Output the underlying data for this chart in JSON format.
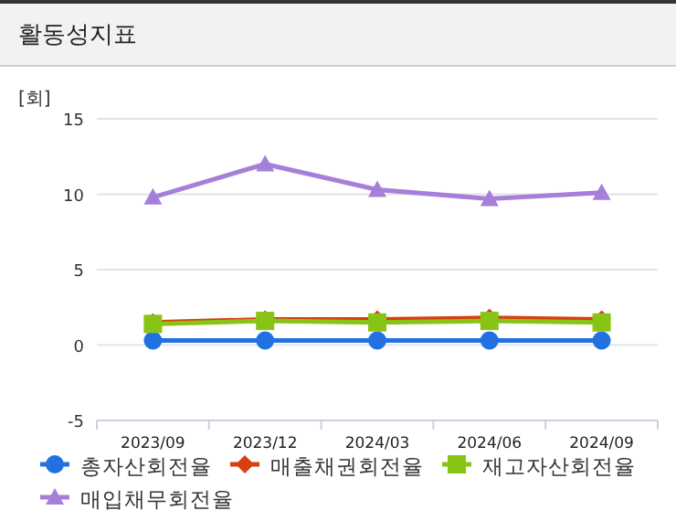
{
  "chart_data": {
    "type": "line",
    "title": "활동성지표",
    "ylabel": "[회]",
    "categories": [
      "2023/09",
      "2023/12",
      "2024/03",
      "2024/06",
      "2024/09"
    ],
    "ylim": [
      -5,
      15
    ],
    "yticks": [
      -5,
      0,
      5,
      10,
      15
    ],
    "grid": "y",
    "legend": "bottom",
    "series": [
      {
        "name": "총자산회전율",
        "color": "#2271e0",
        "marker": "circle",
        "values": [
          0.3,
          0.3,
          0.3,
          0.3,
          0.3
        ]
      },
      {
        "name": "매출채권회전율",
        "color": "#d4400f",
        "marker": "diamond",
        "values": [
          1.5,
          1.7,
          1.7,
          1.8,
          1.7
        ]
      },
      {
        "name": "재고자산회전율",
        "color": "#88c416",
        "marker": "square",
        "values": [
          1.4,
          1.6,
          1.5,
          1.6,
          1.5
        ]
      },
      {
        "name": "매입채무회전율",
        "color": "#a57fd9",
        "marker": "triangle",
        "values": [
          9.8,
          12.0,
          10.3,
          9.7,
          10.1
        ]
      }
    ]
  }
}
